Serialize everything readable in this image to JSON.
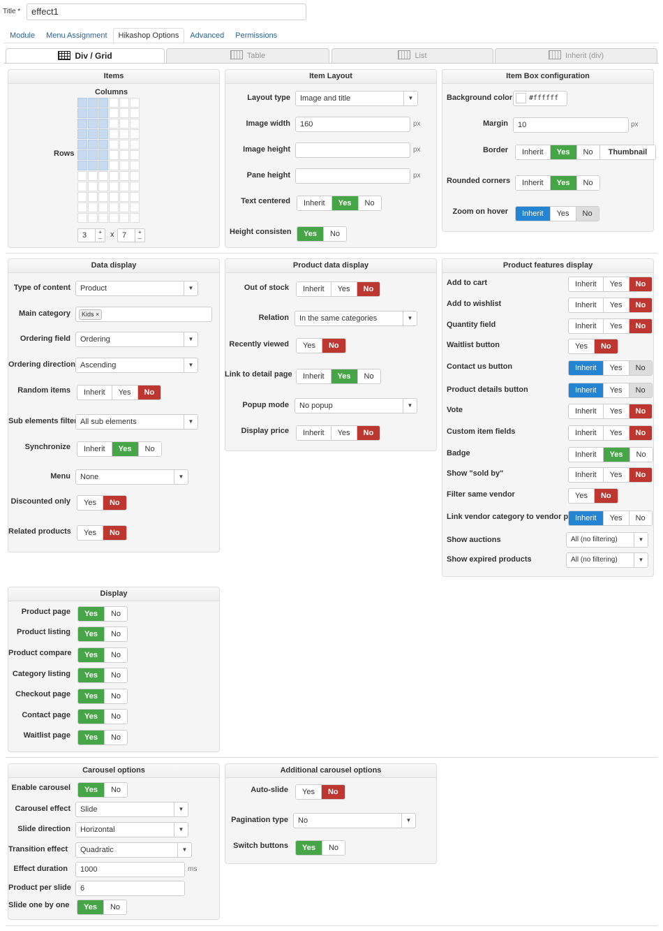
{
  "title": {
    "label": "Title *",
    "value": "effect1"
  },
  "tabs": [
    "Module",
    "Menu Assignment",
    "Hikashop Options",
    "Advanced",
    "Permissions"
  ],
  "view_tabs": [
    "Div / Grid",
    "Table",
    "List",
    "Inherit (div)"
  ],
  "items": {
    "header": "Items",
    "columns": "Columns",
    "rows": "Rows",
    "rows_value": "3",
    "cols_value": "7",
    "times": "x"
  },
  "item_layout": {
    "header": "Item Layout",
    "layout_type": "Layout type",
    "layout_value": "Image and title",
    "image_width": "Image width",
    "image_width_value": "160",
    "image_height": "Image height",
    "pane_height": "Pane height",
    "px": "px",
    "text_centered": "Text centered",
    "height_consistency": "Height consistenc"
  },
  "item_box": {
    "header": "Item Box configuration",
    "bg_color": "Background color",
    "bg_value": "#ffffff",
    "margin": "Margin",
    "margin_value": "10",
    "border": "Border",
    "rounded": "Rounded corners",
    "zoom": "Zoom on hover"
  },
  "data_display": {
    "header": "Data display",
    "type_content": "Type of content",
    "type_value": "Product",
    "main_category": "Main category",
    "category_tag": "Kids",
    "ordering_field": "Ordering field",
    "ordering_value": "Ordering",
    "ordering_direction": "Ordering direction",
    "direction_value": "Ascending",
    "random": "Random items",
    "sub_filter": "Sub elements filter",
    "sub_value": "All sub elements",
    "synchronize": "Synchronize",
    "menu": "Menu",
    "menu_value": "None",
    "discounted": "Discounted only",
    "related": "Related products f"
  },
  "product_data": {
    "header": "Product data display",
    "out_of_stock": "Out of stock",
    "relation": "Relation",
    "relation_value": "In the same categories",
    "recently": "Recently viewed",
    "link_detail": "Link to detail page",
    "popup": "Popup mode",
    "popup_value": "No popup",
    "display_price": "Display price"
  },
  "features": {
    "header": "Product features display",
    "rows": [
      "Add to cart",
      "Add to wishlist",
      "Quantity field",
      "Waitlist button",
      "Contact us button",
      "Product details button",
      "Vote",
      "Custom item fields",
      "Badge",
      "Show \"sold by\"",
      "Filter same vendor",
      "Link vendor category to vendor page",
      "Show auctions",
      "Show expired products"
    ],
    "filter_value": "All (no filtering)"
  },
  "display": {
    "header": "Display",
    "rows": [
      "Product page",
      "Product listing",
      "Product compare",
      "Category listing",
      "Checkout page",
      "Contact page",
      "Waitlist page"
    ]
  },
  "carousel": {
    "header": "Carousel options",
    "enable": "Enable carousel",
    "effect": "Carousel effect",
    "effect_value": "Slide",
    "direction": "Slide direction",
    "direction_value": "Horizontal",
    "transition": "Transition effect",
    "transition_value": "Quadratic",
    "duration": "Effect duration",
    "duration_value": "1000",
    "ms": "ms",
    "per_slide": "Product per slide",
    "per_slide_value": "6",
    "one_by_one": "Slide one by one"
  },
  "additional": {
    "header": "Additional carousel options",
    "auto": "Auto-slide",
    "pagination": "Pagination type",
    "pagination_value": "No",
    "switch": "Switch buttons"
  },
  "btn": {
    "inherit": "Inherit",
    "yes": "Yes",
    "no": "No",
    "thumbnail": "Thumbnail"
  },
  "colors": {
    "green": "#46a546",
    "red": "#bd362f",
    "blue": "#2384d3"
  }
}
